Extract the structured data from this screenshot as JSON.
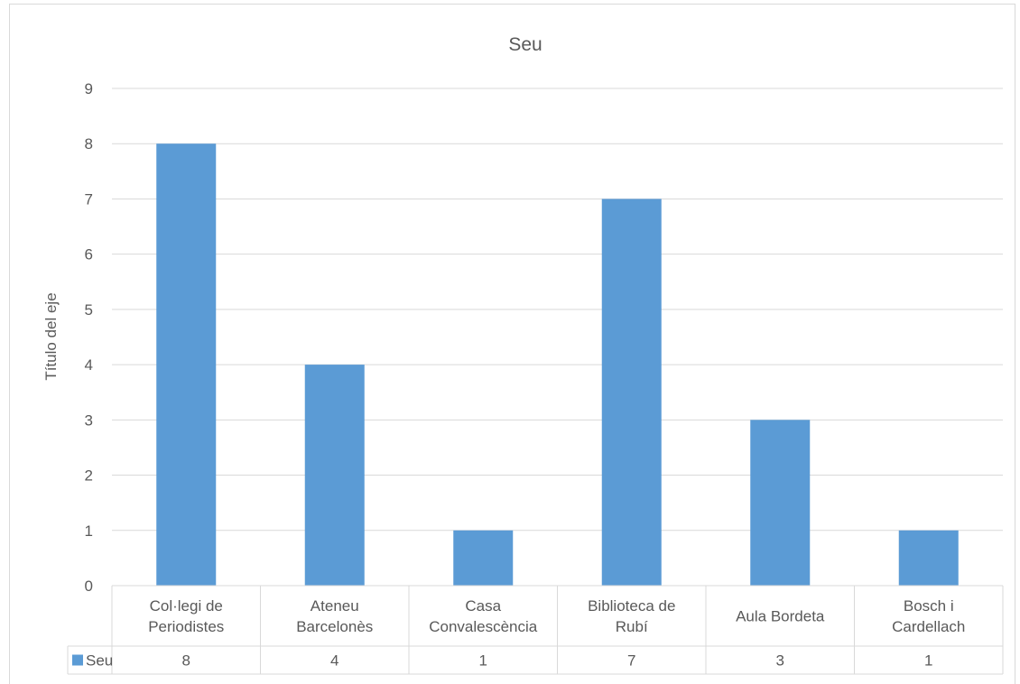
{
  "chart_data": {
    "type": "bar",
    "title": "Seu",
    "ylabel": "Título del eje",
    "xlabel": "",
    "ylim": [
      0,
      9
    ],
    "yticks": [
      0,
      1,
      2,
      3,
      4,
      5,
      6,
      7,
      8,
      9
    ],
    "grid": true,
    "legend": "data-table",
    "categories": [
      [
        "Col·legi de",
        "Periodistes"
      ],
      [
        "Ateneu",
        "Barcelonès"
      ],
      [
        "Casa",
        "Convalescència"
      ],
      [
        "Biblioteca de",
        "Rubí"
      ],
      [
        "Aula Bordeta"
      ],
      [
        "Bosch i",
        "Cardellach"
      ]
    ],
    "series": [
      {
        "name": "Seu",
        "color": "#5b9bd5",
        "values": [
          8,
          4,
          1,
          7,
          3,
          1
        ]
      }
    ]
  }
}
